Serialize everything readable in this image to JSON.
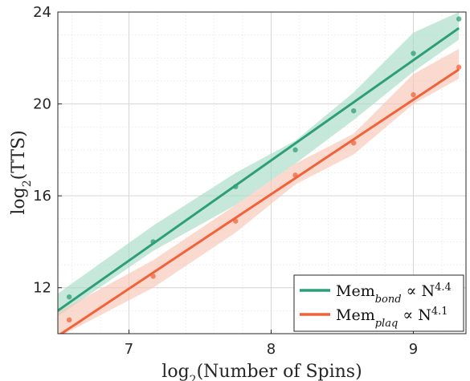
{
  "chart_data": {
    "type": "line",
    "xlabel_base": "log",
    "xlabel_sub": "2",
    "xlabel_rest": "(Number of Spins)",
    "ylabel_base": "log",
    "ylabel_sub": "2",
    "ylabel_rest": "(TTS)",
    "xlim": [
      6.5,
      9.37
    ],
    "ylim": [
      10,
      24
    ],
    "xticks": [
      7,
      8,
      9
    ],
    "yticks": [
      12,
      16,
      20,
      24
    ],
    "grid": true,
    "legend_position": "bottom-right",
    "series": [
      {
        "legend_base": "Mem",
        "legend_sub": "bond",
        "legend_rel": " ∝ N",
        "legend_exp": "4.4",
        "color": "#2e9e78",
        "band_color": "#a6dcc6",
        "points_x": [
          6.58,
          7.17,
          7.75,
          8.17,
          8.58,
          9.0,
          9.32
        ],
        "points_y": [
          11.6,
          14.0,
          16.4,
          18.0,
          19.7,
          22.2,
          23.7
        ],
        "fit_x": [
          6.5,
          9.32
        ],
        "fit_y": [
          11.0,
          23.3
        ],
        "band_upper": [
          12.1,
          14.7,
          17.0,
          18.4,
          20.5,
          23.1,
          24.0
        ],
        "band_lower": [
          11.1,
          13.6,
          15.6,
          17.4,
          19.3,
          21.4,
          22.8
        ]
      },
      {
        "legend_base": "Mem",
        "legend_sub": "plaq",
        "legend_rel": " ∝ N",
        "legend_exp": "4.1",
        "color": "#f0623a",
        "band_color": "#f8c4b3",
        "points_x": [
          6.58,
          7.17,
          7.75,
          8.17,
          8.58,
          9.0,
          9.32
        ],
        "points_y": [
          10.6,
          12.5,
          14.9,
          16.9,
          18.3,
          20.4,
          21.6
        ],
        "fit_x": [
          6.5,
          9.32
        ],
        "fit_y": [
          9.9,
          21.5
        ],
        "band_upper": [
          11.2,
          13.2,
          15.6,
          17.4,
          18.7,
          21.3,
          22.4
        ],
        "band_lower": [
          10.1,
          12.0,
          14.4,
          16.5,
          17.8,
          20.0,
          21.1
        ]
      }
    ]
  }
}
